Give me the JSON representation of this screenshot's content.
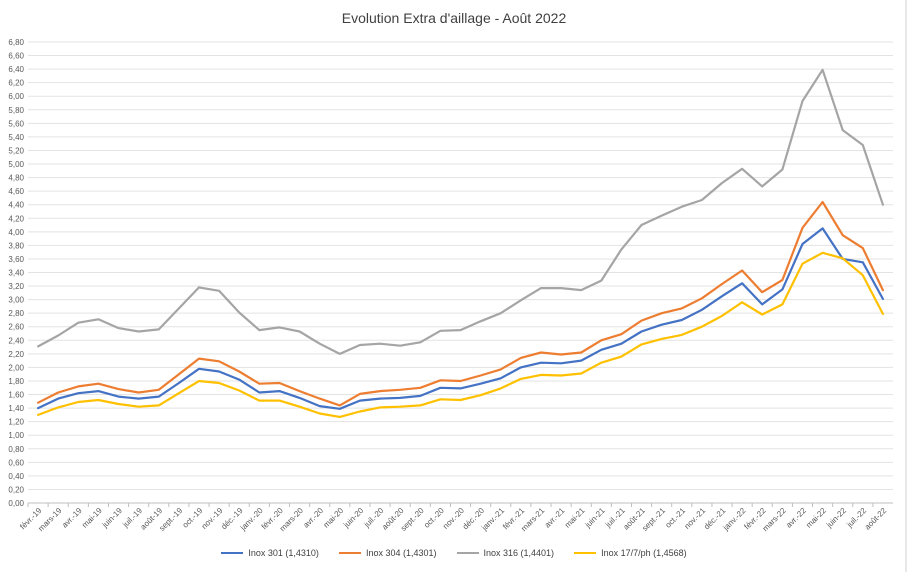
{
  "chart_data": {
    "type": "line",
    "title": "Evolution Extra d'aillage - Août 2022",
    "xlabel": "",
    "ylabel": "",
    "ylim": [
      0,
      6.8
    ],
    "ytick_step": 0.2,
    "grid": true,
    "legend_position": "bottom",
    "x": [
      "févr.-19",
      "mars-19",
      "avr.-19",
      "mai-19",
      "juin-19",
      "juil.-19",
      "août-19",
      "sept.-19",
      "oct.-19",
      "nov.-19",
      "déc.-19",
      "janv.-20",
      "févr.-20",
      "mars-20",
      "avr.-20",
      "mai-20",
      "juin-20",
      "juil.-20",
      "août-20",
      "sept.-20",
      "oct.-20",
      "nov.-20",
      "déc.-20",
      "janv.-21",
      "févr.-21",
      "mars-21",
      "avr.-21",
      "mai-21",
      "juin-21",
      "juil.-21",
      "août-21",
      "sept.-21",
      "oct.-21",
      "nov.-21",
      "déc.-21",
      "janv.-22",
      "févr.-22",
      "mars-22",
      "avr.-22",
      "mai-22",
      "juin-22",
      "juil.-22",
      "août-22"
    ],
    "yticks": [
      "0,00",
      "0,20",
      "0,40",
      "0,60",
      "0,80",
      "1,00",
      "1,20",
      "1,40",
      "1,60",
      "1,80",
      "2,00",
      "2,20",
      "2,40",
      "2,60",
      "2,80",
      "3,00",
      "3,20",
      "3,40",
      "3,60",
      "3,80",
      "4,00",
      "4,20",
      "4,40",
      "4,60",
      "4,80",
      "5,00",
      "5,20",
      "5,40",
      "5,60",
      "5,80",
      "6,00",
      "6,20",
      "6,40",
      "6,60",
      "6,80"
    ],
    "series": [
      {
        "name": "Inox 301 (1,4310)",
        "color": "#4472c4",
        "values": [
          1.4,
          1.54,
          1.62,
          1.65,
          1.57,
          1.54,
          1.57,
          1.77,
          1.98,
          1.94,
          1.82,
          1.63,
          1.65,
          1.55,
          1.43,
          1.39,
          1.51,
          1.54,
          1.55,
          1.58,
          1.7,
          1.69,
          1.76,
          1.84,
          2.0,
          2.07,
          2.06,
          2.1,
          2.26,
          2.35,
          2.53,
          2.63,
          2.7,
          2.85,
          3.05,
          3.24,
          2.93,
          3.15,
          3.82,
          4.05,
          3.6,
          3.55,
          3.01
        ]
      },
      {
        "name": "Inox 304 (1,4301)",
        "color": "#ed7d31",
        "values": [
          1.48,
          1.63,
          1.72,
          1.76,
          1.68,
          1.63,
          1.67,
          1.9,
          2.13,
          2.09,
          1.94,
          1.76,
          1.77,
          1.65,
          1.54,
          1.44,
          1.61,
          1.65,
          1.67,
          1.7,
          1.81,
          1.8,
          1.88,
          1.97,
          2.14,
          2.22,
          2.19,
          2.22,
          2.4,
          2.49,
          2.69,
          2.8,
          2.87,
          3.02,
          3.23,
          3.43,
          3.11,
          3.29,
          4.06,
          4.44,
          3.95,
          3.76,
          3.14
        ]
      },
      {
        "name": "Inox 316 (1,4401)",
        "color": "#a5a5a5",
        "values": [
          2.31,
          2.47,
          2.66,
          2.71,
          2.58,
          2.53,
          2.56,
          2.87,
          3.18,
          3.13,
          2.81,
          2.55,
          2.59,
          2.53,
          2.35,
          2.2,
          2.33,
          2.35,
          2.32,
          2.37,
          2.54,
          2.55,
          2.68,
          2.8,
          2.99,
          3.17,
          3.17,
          3.14,
          3.28,
          3.74,
          4.1,
          4.24,
          4.37,
          4.47,
          4.72,
          4.93,
          4.67,
          4.92,
          5.93,
          6.39,
          5.5,
          5.28,
          4.4
        ]
      },
      {
        "name": "Inox 17/7/ph (1,4568)",
        "color": "#ffc000",
        "values": [
          1.3,
          1.41,
          1.49,
          1.52,
          1.46,
          1.42,
          1.44,
          1.62,
          1.8,
          1.77,
          1.66,
          1.51,
          1.51,
          1.42,
          1.32,
          1.27,
          1.35,
          1.41,
          1.42,
          1.44,
          1.53,
          1.52,
          1.59,
          1.69,
          1.83,
          1.89,
          1.88,
          1.91,
          2.07,
          2.16,
          2.34,
          2.42,
          2.48,
          2.6,
          2.76,
          2.96,
          2.78,
          2.93,
          3.53,
          3.69,
          3.61,
          3.36,
          2.79
        ]
      }
    ]
  }
}
